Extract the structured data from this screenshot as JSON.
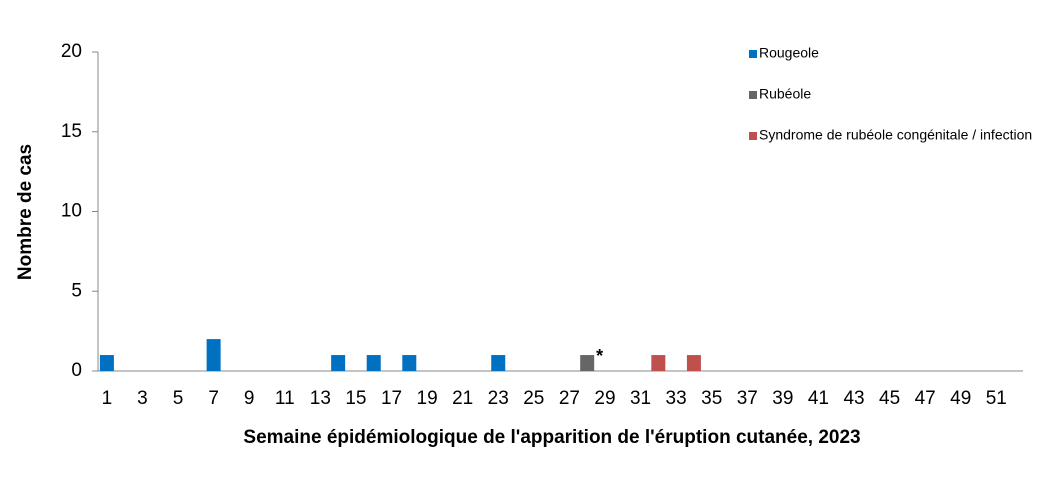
{
  "chart_data": {
    "type": "bar",
    "x_label": "Semaine épidémiologique de l'apparition de l'éruption cutanée, 2023",
    "y_label": "Nombre de cas",
    "categories": [
      "1",
      null,
      "3",
      null,
      "5",
      null,
      "7",
      null,
      "9",
      null,
      "11",
      null,
      "13",
      null,
      "15",
      null,
      "17",
      null,
      "19",
      null,
      "21",
      null,
      "23",
      null,
      "25",
      null,
      "27",
      null,
      "29",
      null,
      "31",
      null,
      "33",
      null,
      "35",
      null,
      "37",
      null,
      "39",
      null,
      "41",
      null,
      "43",
      null,
      "45",
      null,
      "47",
      null,
      "49",
      null,
      "51",
      null
    ],
    "series": [
      {
        "name": "Rougeole",
        "color": "#0070c0",
        "values": [
          1,
          0,
          0,
          0,
          0,
          0,
          2,
          0,
          0,
          0,
          0,
          0,
          0,
          1,
          0,
          1,
          0,
          1,
          0,
          0,
          0,
          0,
          1,
          0,
          0,
          0,
          0,
          0,
          0,
          0,
          0,
          0,
          0,
          0,
          0,
          0,
          0,
          0,
          0,
          0,
          0,
          0,
          0,
          0,
          0,
          0,
          0,
          0,
          0,
          0,
          0,
          0
        ]
      },
      {
        "name": "Rubéole",
        "color": "#666666",
        "values": [
          0,
          0,
          0,
          0,
          0,
          0,
          0,
          0,
          0,
          0,
          0,
          0,
          0,
          0,
          0,
          0,
          0,
          0,
          0,
          0,
          0,
          0,
          0,
          0,
          0,
          0,
          0,
          1,
          0,
          0,
          0,
          0,
          0,
          0,
          0,
          0,
          0,
          0,
          0,
          0,
          0,
          0,
          0,
          0,
          0,
          0,
          0,
          0,
          0,
          0,
          0,
          0
        ]
      },
      {
        "name": "Syndrome de rubéole congénitale / infection",
        "color": "#c0504d",
        "values": [
          0,
          0,
          0,
          0,
          0,
          0,
          0,
          0,
          0,
          0,
          0,
          0,
          0,
          0,
          0,
          0,
          0,
          0,
          0,
          0,
          0,
          0,
          0,
          0,
          0,
          0,
          0,
          0,
          0,
          0,
          0,
          1,
          0,
          1,
          0,
          0,
          0,
          0,
          0,
          0,
          0,
          0,
          0,
          0,
          0,
          0,
          0,
          0,
          0,
          0,
          0,
          0
        ]
      }
    ],
    "annotation": "*",
    "ylim": [
      0,
      20
    ],
    "yticks": [
      0,
      5,
      10,
      15,
      20
    ],
    "grid": false,
    "legend": "top-right"
  }
}
